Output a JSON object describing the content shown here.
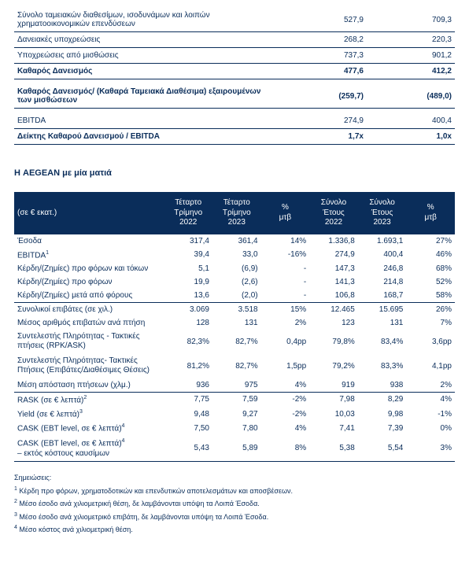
{
  "colors": {
    "primary": "#0a2d5a",
    "background": "#ffffff",
    "text": "#0a2d5a"
  },
  "table1": {
    "col_widths": [
      "60%",
      "20%",
      "20%"
    ],
    "rows": [
      {
        "label": "Σύνολο ταμειακών διαθεσίμων, ισοδυνάμων και λοιπών χρηματοοικονομικών επενδύσεων",
        "c1": "527,9",
        "c2": "709,3",
        "bold": false
      },
      {
        "label": "Δανειακές υποχρεώσεις",
        "c1": "268,2",
        "c2": "220,3",
        "bold": false
      },
      {
        "label": "Υποχρεώσεις από μισθώσεις",
        "c1": "737,3",
        "c2": "901,2",
        "bold": false
      },
      {
        "label": "Καθαρός Δανεισμός",
        "c1": "477,6",
        "c2": "412,2",
        "bold": true
      }
    ],
    "spacer_rows": [
      {
        "label": "Καθαρός Δανεισμός/ (Καθαρά Ταμειακά Διαθέσιμα) εξαιρουμένων των μισθώσεων",
        "c1": "(259,7)",
        "c2": "(489,0)",
        "bold": true
      }
    ],
    "ebitda_rows": [
      {
        "label": "EBITDA",
        "c1": "274,9",
        "c2": "400,4",
        "bold": false
      },
      {
        "label": "Δείκτης Καθαρού Δανεισμού / EBITDA",
        "c1": "1,7x",
        "c2": "1,0x",
        "bold": true
      }
    ]
  },
  "section_heading": "Η AEGEAN με μία ματιά",
  "table2": {
    "header": {
      "left": "(σε € εκατ.)",
      "cols": [
        "Τέταρτο Τρίμηνο 2022",
        "Τέταρτο Τρίμηνο 2023",
        "% μτβ",
        "Σύνολο Έτους 2022",
        "Σύνολο Έτους 2023",
        "% μτβ"
      ]
    },
    "col_widths": [
      "34%",
      "11%",
      "11%",
      "11%",
      "11%",
      "11%",
      "11%"
    ],
    "groups": [
      [
        {
          "label": "Έσοδα",
          "v": [
            "317,4",
            "361,4",
            "14%",
            "1.336,8",
            "1.693,1",
            "27%"
          ]
        },
        {
          "label": "EBITDA",
          "sup": "1",
          "v": [
            "39,4",
            "33,0",
            "-16%",
            "274,9",
            "400,4",
            "46%"
          ]
        },
        {
          "label": "Κέρδη/(Ζημίες) προ φόρων και τόκων",
          "v": [
            "5,1",
            "(6,9)",
            "-",
            "147,3",
            "246,8",
            "68%"
          ]
        },
        {
          "label": "Κέρδη/(Ζημίες) προ φόρων",
          "v": [
            "19,9",
            "(2,6)",
            "-",
            "141,3",
            "214,8",
            "52%"
          ]
        },
        {
          "label": "Κέρδη/(Ζημίες) μετά από φόρους",
          "v": [
            "13,6",
            "(2,0)",
            "-",
            "106,8",
            "168,7",
            "58%"
          ]
        }
      ],
      [
        {
          "label": "Συνολικοί επιβάτες (σε χιλ.)",
          "v": [
            "3.069",
            "3.518",
            "15%",
            "12.465",
            "15.695",
            "26%"
          ]
        },
        {
          "label": "Μέσος αριθμός επιβατών ανά πτήση",
          "v": [
            "128",
            "131",
            "2%",
            "123",
            "131",
            "7%"
          ]
        },
        {
          "label": "Συντελεστής Πληρότητας - Τακτικές πτήσεις (RPK/ASK)",
          "multi": true,
          "v": [
            "82,3%",
            "82,7%",
            "0,4pp",
            "79,8%",
            "83,4%",
            "3,6pp"
          ]
        },
        {
          "label": "Συντελεστής Πληρότητας- Τακτικές Πτήσεις (Επιβάτες/Διαθέσιμες Θέσεις)",
          "multi": true,
          "v": [
            "81,2%",
            "82,7%",
            "1,5pp",
            "79,2%",
            "83,3%",
            "4,1pp"
          ]
        },
        {
          "label": "Μέση απόσταση πτήσεων (χλμ.)",
          "v": [
            "936",
            "975",
            "4%",
            "919",
            "938",
            "2%"
          ]
        }
      ],
      [
        {
          "label": "RASK (σε € λεπτά)",
          "sup": "2",
          "v": [
            "7,75",
            "7,59",
            "-2%",
            "7,98",
            "8,29",
            "4%"
          ]
        },
        {
          "label": "Yield (σε € λεπτά)",
          "sup": "3",
          "v": [
            "9,48",
            "9,27",
            "-2%",
            "10,03",
            "9,98",
            "-1%"
          ]
        },
        {
          "label": "CASK (EBT level, σε € λεπτά)",
          "sup": "4",
          "v": [
            "7,50",
            "7,80",
            "4%",
            "7,41",
            "7,39",
            "0%"
          ]
        },
        {
          "label": "CASK (EBT level, σε € λεπτά)",
          "sup": "4",
          "label2": " – εκτός κόστους καυσίμων",
          "multi": true,
          "v": [
            "5,43",
            "5,89",
            "8%",
            "5,38",
            "5,54",
            "3%"
          ]
        }
      ]
    ]
  },
  "notes": {
    "heading": "Σημειώσεις:",
    "items": [
      {
        "n": "1",
        "t": "Κέρδη προ φόρων, χρηματοδοτικών και επενδυτικών αποτελεσμάτων και αποσβέσεων."
      },
      {
        "n": "2",
        "t": "Μέσο έσοδο ανά χιλιομετρική θέση, δε λαμβάνονται υπόψη τα Λοιπά Έσοδα."
      },
      {
        "n": "3",
        "t": "Μέσο έσοδο ανά χιλιομετρικό επιβάτη, δε λαμβάνονται υπόψη τα Λοιπά Έσοδα."
      },
      {
        "n": "4",
        "t": "Μέσο κόστος ανά χιλιομετρική θέση."
      }
    ]
  }
}
